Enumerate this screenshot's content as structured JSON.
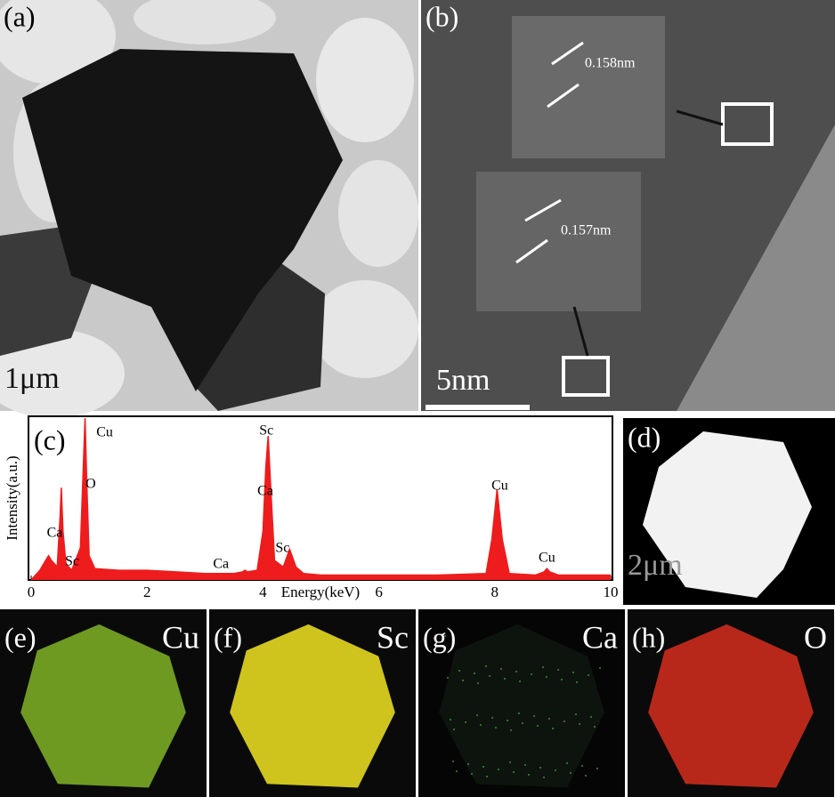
{
  "panel_a": {
    "label": "(a)",
    "scale_bar": "1μm"
  },
  "panel_b": {
    "label": "(b)",
    "scale_bar": "5nm",
    "spacings": [
      "0.158nm",
      "0.157nm"
    ]
  },
  "panel_d": {
    "label": "(d)",
    "scale_bar": "2μm"
  },
  "maps": [
    {
      "label": "(e)",
      "element": "Cu"
    },
    {
      "label": "(f)",
      "element": "Sc"
    },
    {
      "label": "(g)",
      "element": "Ca"
    },
    {
      "label": "(h)",
      "element": "O"
    }
  ],
  "chart_data": {
    "type": "area",
    "panel_label": "(c)",
    "x_label": "Energy(keV)",
    "y_label": "Intensity(a.u.)",
    "color": "#ee1c1c",
    "x": [
      0,
      0.15,
      0.25,
      0.3,
      0.35,
      0.4,
      0.45,
      0.5,
      0.52,
      0.55,
      0.6,
      0.7,
      0.85,
      0.9,
      0.93,
      0.96,
      1.0,
      1.1,
      1.5,
      2.0,
      2.5,
      3.0,
      3.5,
      3.65,
      3.69,
      3.73,
      3.9,
      4.0,
      4.05,
      4.09,
      4.13,
      4.2,
      4.35,
      4.46,
      4.57,
      4.7,
      5.0,
      6.0,
      7.0,
      7.85,
      7.95,
      8.04,
      8.13,
      8.25,
      8.7,
      8.85,
      8.9,
      8.95,
      9.1,
      10
    ],
    "values": [
      0,
      6,
      12,
      15,
      12,
      10,
      8,
      40,
      57,
      30,
      10,
      6,
      20,
      70,
      100,
      60,
      15,
      7,
      6,
      6,
      5,
      4,
      4,
      5,
      6,
      5,
      6,
      30,
      70,
      89,
      60,
      12,
      8,
      19,
      8,
      4,
      3,
      3,
      3,
      4,
      25,
      56,
      25,
      4,
      3,
      5,
      7,
      5,
      3,
      3
    ],
    "xlim": [
      0,
      10
    ],
    "ylim": [
      0,
      100
    ],
    "xticks": [
      0,
      2,
      4,
      6,
      8,
      10
    ],
    "peak_labels": [
      {
        "label": "Ca",
        "energy": 0.3
      },
      {
        "label": "Sc",
        "energy": 0.4
      },
      {
        "label": "O",
        "energy": 0.52
      },
      {
        "label": "Cu",
        "energy": 0.93
      },
      {
        "label": "Ca",
        "energy": 3.69
      },
      {
        "label": "Sc",
        "energy": 4.09
      },
      {
        "label": "Ca",
        "energy": 4.01
      },
      {
        "label": "Sc",
        "energy": 4.46
      },
      {
        "label": "Cu",
        "energy": 8.04
      },
      {
        "label": "Cu",
        "energy": 8.9
      }
    ]
  }
}
